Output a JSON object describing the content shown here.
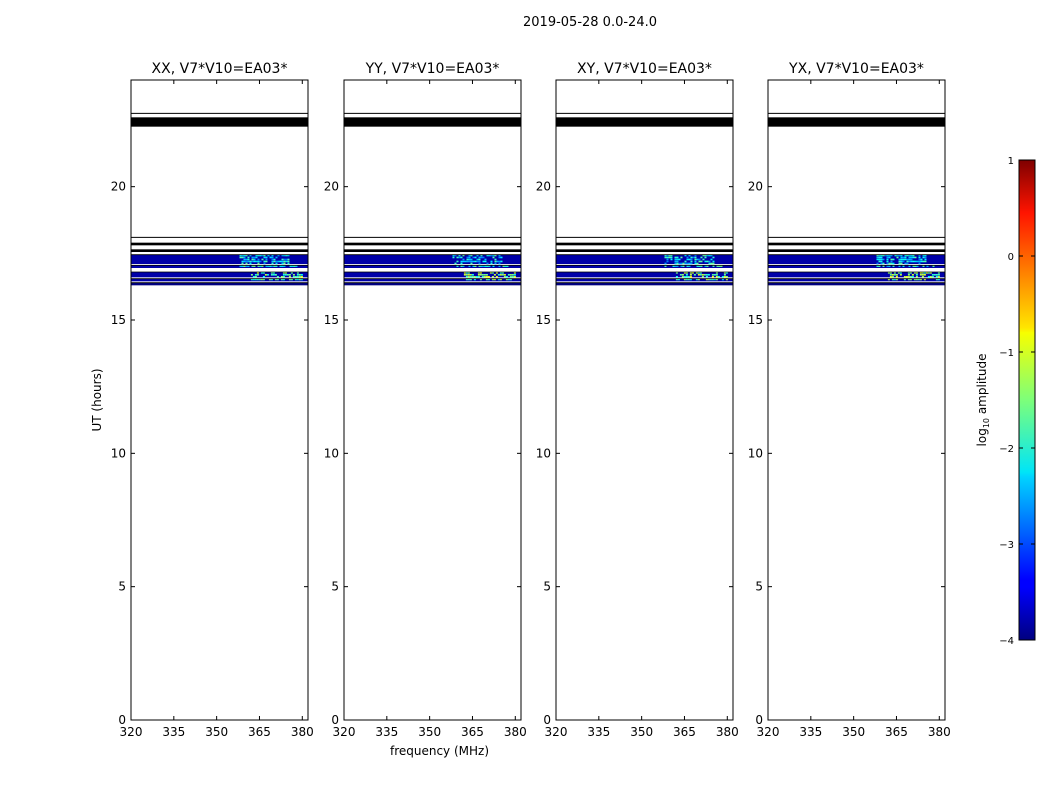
{
  "figure": {
    "suptitle": "2019-05-28 0.0-24.0",
    "xlabel": "frequency (MHz)",
    "ylabel": "UT (hours)"
  },
  "colorbar": {
    "label_prefix": "log",
    "label_sub": "10",
    "label_suffix": " amplitude",
    "range": [
      -4,
      1
    ],
    "ticks": [
      1,
      0,
      -1,
      -2,
      -3,
      -4
    ],
    "tick_labels": [
      "1",
      "0",
      "−1",
      "−2",
      "−3",
      "−4"
    ],
    "colormap": "jet"
  },
  "chart_data": [
    {
      "type": "heatmap",
      "title": "XX, V7*V10=EA03*",
      "xlim": [
        320,
        382
      ],
      "ylim": [
        0,
        24
      ],
      "x_ticks": [
        320,
        335,
        350,
        365,
        380
      ],
      "y_ticks": [
        0,
        5,
        10,
        15,
        20
      ],
      "show_xlabel": false,
      "show_ylabel": true,
      "bands": [
        {
          "ut": [
            22.25,
            22.6
          ],
          "level": -5
        },
        {
          "ut": [
            17.8,
            17.9
          ],
          "level": -5
        },
        {
          "ut": [
            17.55,
            17.65
          ],
          "level": -5
        },
        {
          "ut": [
            17.1,
            17.45
          ],
          "level": -3.8,
          "hot_freq": [
            358,
            375
          ],
          "hot_level": -2.2
        },
        {
          "ut": [
            16.95,
            17.05
          ],
          "level": -3.8,
          "hot_freq": [
            358,
            378
          ],
          "hot_level": -2.0
        },
        {
          "ut": [
            16.6,
            16.8
          ],
          "level": -3.8,
          "hot_freq": [
            362,
            380
          ],
          "hot_level": -1.5
        },
        {
          "ut": [
            16.45,
            16.55
          ],
          "level": -3.8,
          "hot_freq": [
            362,
            380
          ],
          "hot_level": -1.7
        },
        {
          "ut": [
            16.3,
            16.4
          ],
          "level": -4
        }
      ]
    },
    {
      "type": "heatmap",
      "title": "YY, V7*V10=EA03*",
      "xlim": [
        320,
        382
      ],
      "ylim": [
        0,
        24
      ],
      "x_ticks": [
        320,
        335,
        350,
        365,
        380
      ],
      "y_ticks": [
        0,
        5,
        10,
        15,
        20
      ],
      "show_xlabel": true,
      "show_ylabel": false,
      "bands": [
        {
          "ut": [
            22.25,
            22.6
          ],
          "level": -5
        },
        {
          "ut": [
            17.8,
            17.9
          ],
          "level": -5
        },
        {
          "ut": [
            17.55,
            17.65
          ],
          "level": -5
        },
        {
          "ut": [
            17.1,
            17.45
          ],
          "level": -3.8,
          "hot_freq": [
            358,
            375
          ],
          "hot_level": -2.2
        },
        {
          "ut": [
            16.95,
            17.05
          ],
          "level": -3.8,
          "hot_freq": [
            358,
            378
          ],
          "hot_level": -2.0
        },
        {
          "ut": [
            16.6,
            16.8
          ],
          "level": -3.8,
          "hot_freq": [
            362,
            380
          ],
          "hot_level": -1.5
        },
        {
          "ut": [
            16.45,
            16.55
          ],
          "level": -3.8,
          "hot_freq": [
            362,
            380
          ],
          "hot_level": -1.7
        },
        {
          "ut": [
            16.3,
            16.4
          ],
          "level": -4
        }
      ]
    },
    {
      "type": "heatmap",
      "title": "XY, V7*V10=EA03*",
      "xlim": [
        320,
        382
      ],
      "ylim": [
        0,
        24
      ],
      "x_ticks": [
        320,
        335,
        350,
        365,
        380
      ],
      "y_ticks": [
        0,
        5,
        10,
        15,
        20
      ],
      "show_xlabel": false,
      "show_ylabel": false,
      "bands": [
        {
          "ut": [
            22.25,
            22.6
          ],
          "level": -5
        },
        {
          "ut": [
            17.8,
            17.9
          ],
          "level": -5
        },
        {
          "ut": [
            17.55,
            17.65
          ],
          "level": -5
        },
        {
          "ut": [
            17.1,
            17.45
          ],
          "level": -3.8,
          "hot_freq": [
            358,
            375
          ],
          "hot_level": -2.2
        },
        {
          "ut": [
            16.95,
            17.05
          ],
          "level": -3.8,
          "hot_freq": [
            358,
            378
          ],
          "hot_level": -2.0
        },
        {
          "ut": [
            16.6,
            16.8
          ],
          "level": -3.8,
          "hot_freq": [
            362,
            380
          ],
          "hot_level": -1.5
        },
        {
          "ut": [
            16.45,
            16.55
          ],
          "level": -3.8,
          "hot_freq": [
            362,
            380
          ],
          "hot_level": -1.7
        },
        {
          "ut": [
            16.3,
            16.4
          ],
          "level": -4
        }
      ]
    },
    {
      "type": "heatmap",
      "title": "YX, V7*V10=EA03*",
      "xlim": [
        320,
        382
      ],
      "ylim": [
        0,
        24
      ],
      "x_ticks": [
        320,
        335,
        350,
        365,
        380
      ],
      "y_ticks": [
        0,
        5,
        10,
        15,
        20
      ],
      "show_xlabel": false,
      "show_ylabel": false,
      "bands": [
        {
          "ut": [
            22.25,
            22.6
          ],
          "level": -5
        },
        {
          "ut": [
            17.8,
            17.9
          ],
          "level": -5
        },
        {
          "ut": [
            17.55,
            17.65
          ],
          "level": -5
        },
        {
          "ut": [
            17.1,
            17.45
          ],
          "level": -3.8,
          "hot_freq": [
            358,
            375
          ],
          "hot_level": -2.2
        },
        {
          "ut": [
            16.95,
            17.05
          ],
          "level": -3.8,
          "hot_freq": [
            358,
            378
          ],
          "hot_level": -2.0
        },
        {
          "ut": [
            16.6,
            16.8
          ],
          "level": -3.8,
          "hot_freq": [
            362,
            380
          ],
          "hot_level": -1.5
        },
        {
          "ut": [
            16.45,
            16.55
          ],
          "level": -3.8,
          "hot_freq": [
            362,
            380
          ],
          "hot_level": -1.7
        },
        {
          "ut": [
            16.3,
            16.4
          ],
          "level": -4
        }
      ]
    }
  ]
}
